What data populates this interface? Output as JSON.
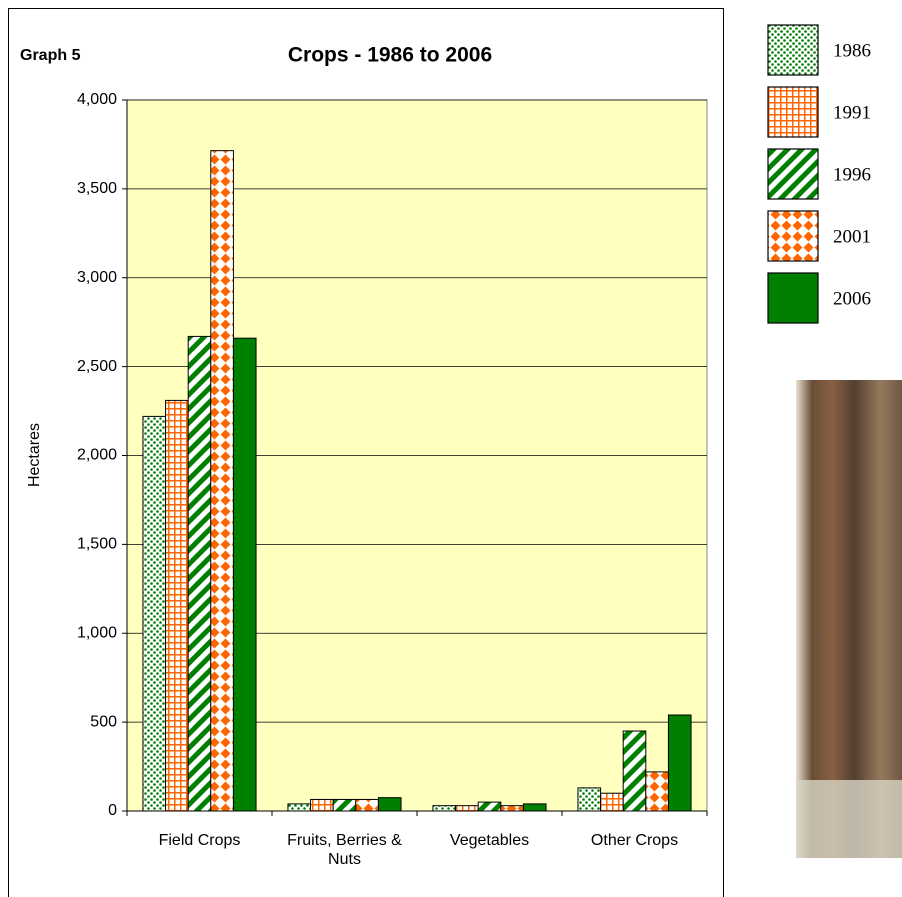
{
  "chart_data": {
    "type": "bar",
    "label": "Graph 5",
    "title": "Crops - 1986 to 2006",
    "y_label": "Hectares",
    "categories": [
      "Field Crops",
      "Fruits, Berries & Nuts",
      "Vegetables",
      "Other Crops"
    ],
    "series": [
      {
        "name": "1986",
        "color": "#008000",
        "pattern": "dots",
        "values": [
          2220,
          40,
          30,
          130
        ]
      },
      {
        "name": "1991",
        "color": "#ff6600",
        "pattern": "grid",
        "values": [
          2310,
          65,
          30,
          100
        ]
      },
      {
        "name": "1996",
        "color": "#008000",
        "pattern": "stripes",
        "values": [
          2670,
          65,
          50,
          450
        ]
      },
      {
        "name": "2001",
        "color": "#ff6600",
        "pattern": "diamonds",
        "values": [
          3715,
          65,
          30,
          220
        ]
      },
      {
        "name": "2006",
        "color": "#008000",
        "pattern": "solid",
        "values": [
          2660,
          75,
          40,
          540
        ]
      }
    ],
    "ylim": [
      0,
      4000
    ],
    "yticks": [
      0,
      500,
      {
        "value": 1000,
        "label": "1,000"
      },
      {
        "value": 1500,
        "label": "1,500"
      },
      {
        "value": 2000,
        "label": "2,000"
      },
      {
        "value": 2500,
        "label": "2,500"
      },
      {
        "value": 3000,
        "label": "3,000"
      },
      {
        "value": 3500,
        "label": "3,500"
      },
      {
        "value": 4000,
        "label": "4,000"
      }
    ],
    "grid": true,
    "plot_background": "#ffffc0"
  }
}
